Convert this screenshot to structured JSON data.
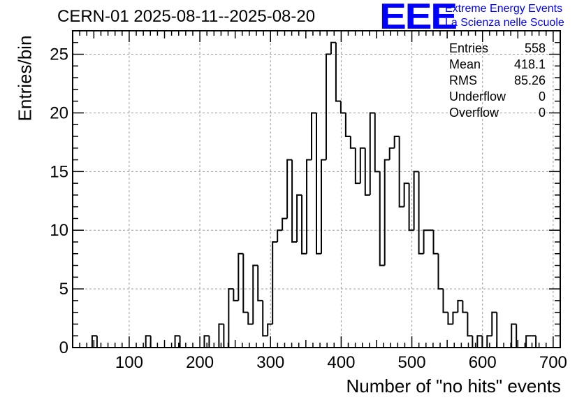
{
  "title": "CERN-01 2025-08-11--2025-08-20",
  "logo": {
    "mark": "EEE",
    "line1": "Extreme Energy Events",
    "line2": "La Scienza nelle Scuole",
    "color": "#0000ff"
  },
  "stats": [
    {
      "label": "Entries",
      "value": "558"
    },
    {
      "label": "Mean",
      "value": "418.1"
    },
    {
      "label": "RMS",
      "value": "85.26"
    },
    {
      "label": "Underflow",
      "value": "0"
    },
    {
      "label": "Overflow",
      "value": "0"
    }
  ],
  "chart_data": {
    "type": "bar",
    "style": "step-histogram",
    "title": "CERN-01 2025-08-11--2025-08-20",
    "xlabel": "Number of \"no hits\" events",
    "ylabel": "Entries/bin",
    "xlim": [
      20,
      710
    ],
    "ylim": [
      0,
      27
    ],
    "bin_edges_start": 20,
    "bin_width": 6.9,
    "values": [
      0,
      0,
      0,
      0,
      1,
      0,
      0,
      0,
      0,
      0,
      0,
      0,
      0,
      0,
      0,
      1,
      0,
      0,
      0,
      0,
      0,
      1,
      0,
      0,
      0,
      0,
      0,
      1,
      0,
      0,
      2,
      0,
      5,
      4,
      8,
      3,
      2,
      7,
      4,
      1,
      2,
      9,
      10,
      11,
      16,
      9,
      13,
      8,
      16,
      20,
      8,
      16,
      25,
      26,
      21,
      20,
      18,
      17,
      14,
      17,
      13,
      20,
      15,
      7,
      16,
      17,
      18,
      12,
      14,
      10,
      15,
      8,
      10,
      10,
      8,
      5,
      3,
      2,
      3,
      4,
      3,
      1,
      0,
      1,
      0,
      1,
      3,
      0,
      0,
      0,
      2,
      0,
      0,
      1,
      1
    ],
    "xticks": [
      100,
      200,
      300,
      400,
      500,
      600,
      700
    ],
    "yticks": [
      0,
      5,
      10,
      15,
      20,
      25
    ],
    "grid": true,
    "line_color": "#000000"
  }
}
